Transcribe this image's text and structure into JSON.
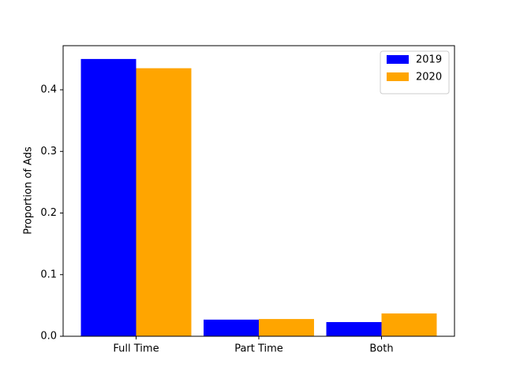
{
  "chart_data": {
    "type": "bar",
    "y_label": "Proportion of Ads",
    "categories": [
      "Full Time",
      "Part Time",
      "Both"
    ],
    "series": [
      {
        "name": "2019",
        "color": "#0000ff",
        "values": [
          0.45,
          0.027,
          0.023
        ]
      },
      {
        "name": "2020",
        "color": "#ffa500",
        "values": [
          0.435,
          0.028,
          0.037
        ]
      }
    ],
    "ylim": [
      0,
      0.4716
    ],
    "yticks": [
      0.0,
      0.1,
      0.2,
      0.3,
      0.4
    ],
    "legend": "upper right",
    "grid": false
  }
}
